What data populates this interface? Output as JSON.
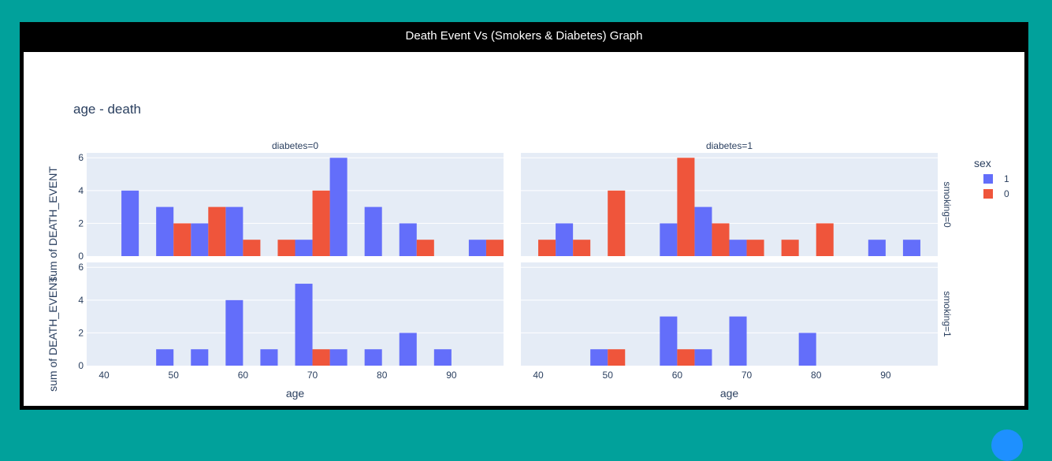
{
  "window": {
    "title": "Death Event Vs (Smokers & Diabetes) Graph"
  },
  "chart_data": {
    "type": "bar",
    "title": "age - death",
    "xlabel": "age",
    "ylabel": "sum of DEATH_EVENT",
    "facet_col_labels": [
      "diabetes=0",
      "diabetes=1"
    ],
    "facet_row_labels": [
      "smoking=0",
      "smoking=1"
    ],
    "legend": {
      "title": "sex",
      "placement": "right",
      "entries": [
        {
          "name": "1",
          "color": "#636efa"
        },
        {
          "name": "0",
          "color": "#ef553b"
        }
      ]
    },
    "xlim": [
      37.5,
      97.5
    ],
    "ylim": [
      0,
      6.3
    ],
    "xticks": [
      40,
      50,
      60,
      70,
      80,
      90
    ],
    "yticks": [
      0,
      2,
      4,
      6
    ],
    "bin_width": 5,
    "background": "#e5ecf6",
    "grid": true,
    "facets": [
      {
        "name": "diabetes=0, smoking=0",
        "series": [
          {
            "name": "1",
            "values": [
              [
                45,
                4
              ],
              [
                50,
                3
              ],
              [
                55,
                2
              ],
              [
                60,
                3
              ],
              [
                70,
                1
              ],
              [
                75,
                6
              ],
              [
                80,
                3
              ],
              [
                85,
                2
              ],
              [
                95,
                1
              ]
            ]
          },
          {
            "name": "0",
            "values": [
              [
                50,
                2
              ],
              [
                55,
                3
              ],
              [
                60,
                1
              ],
              [
                65,
                1
              ],
              [
                70,
                4
              ],
              [
                85,
                1
              ],
              [
                95,
                1
              ]
            ]
          }
        ]
      },
      {
        "name": "diabetes=1, smoking=0",
        "series": [
          {
            "name": "1",
            "values": [
              [
                45,
                2
              ],
              [
                60,
                2
              ],
              [
                65,
                3
              ],
              [
                70,
                1
              ],
              [
                90,
                1
              ],
              [
                95,
                1
              ]
            ]
          },
          {
            "name": "0",
            "values": [
              [
                40,
                1
              ],
              [
                45,
                1
              ],
              [
                50,
                4
              ],
              [
                60,
                6
              ],
              [
                65,
                2
              ],
              [
                70,
                1
              ],
              [
                75,
                1
              ],
              [
                80,
                2
              ]
            ]
          }
        ]
      },
      {
        "name": "diabetes=0, smoking=1",
        "series": [
          {
            "name": "1",
            "values": [
              [
                50,
                1
              ],
              [
                55,
                1
              ],
              [
                60,
                4
              ],
              [
                65,
                1
              ],
              [
                70,
                5
              ],
              [
                75,
                1
              ],
              [
                80,
                1
              ],
              [
                85,
                2
              ],
              [
                90,
                1
              ]
            ]
          },
          {
            "name": "0",
            "values": [
              [
                70,
                1
              ]
            ]
          }
        ]
      },
      {
        "name": "diabetes=1, smoking=1",
        "series": [
          {
            "name": "1",
            "values": [
              [
                50,
                1
              ],
              [
                60,
                3
              ],
              [
                65,
                1
              ],
              [
                70,
                3
              ],
              [
                80,
                2
              ]
            ]
          },
          {
            "name": "0",
            "values": [
              [
                50,
                1
              ],
              [
                60,
                1
              ]
            ]
          }
        ]
      }
    ]
  }
}
